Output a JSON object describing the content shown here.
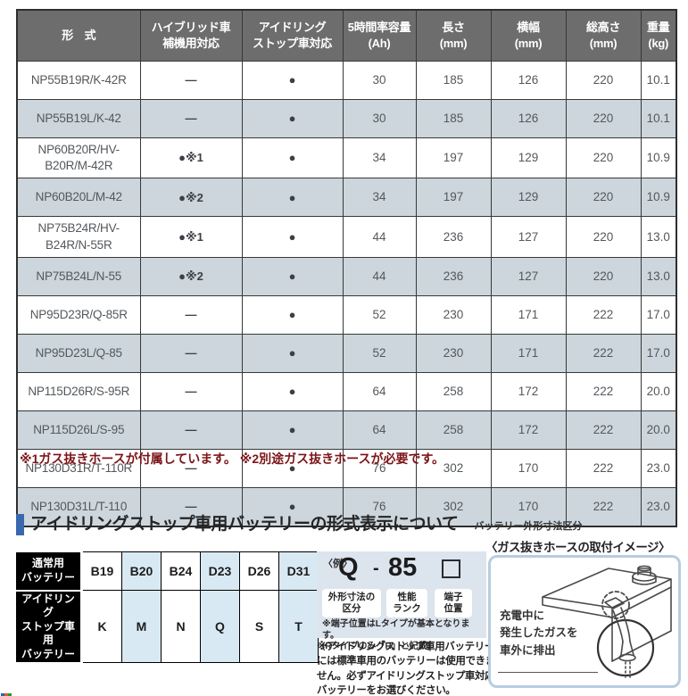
{
  "colors": {
    "header_bg": "#6d6d6d",
    "row_alt_bg": "#ccd6dc",
    "table_border": "#383838",
    "footnote_red": "#7c1417",
    "accent_blue": "#3a68ae",
    "map_alt_bg": "#d9e9f3",
    "example_bg": "#dce4ee",
    "hose_box_border": "#b7cde0"
  },
  "main_table": {
    "headers": [
      "形　式",
      "ハイブリッド車\n補機用対応",
      "アイドリング\nストップ車対応",
      "5時間率容量\n(Ah)",
      "長さ\n(mm)",
      "横幅\n(mm)",
      "総高さ\n(mm)",
      "重量\n(kg)"
    ],
    "rows": [
      [
        "NP55B19R/K-42R",
        "―",
        "●",
        "30",
        "185",
        "126",
        "220",
        "10.1"
      ],
      [
        "NP55B19L/K-42",
        "―",
        "●",
        "30",
        "185",
        "126",
        "220",
        "10.1"
      ],
      [
        "NP60B20R/HV-B20R/M-42R",
        "●※1",
        "●",
        "34",
        "197",
        "129",
        "220",
        "10.9"
      ],
      [
        "NP60B20L/M-42",
        "●※2",
        "●",
        "34",
        "197",
        "129",
        "220",
        "10.9"
      ],
      [
        "NP75B24R/HV-B24R/N-55R",
        "●※1",
        "●",
        "44",
        "236",
        "127",
        "220",
        "13.0"
      ],
      [
        "NP75B24L/N-55",
        "●※2",
        "●",
        "44",
        "236",
        "127",
        "220",
        "13.0"
      ],
      [
        "NP95D23R/Q-85R",
        "―",
        "●",
        "52",
        "230",
        "171",
        "222",
        "17.0"
      ],
      [
        "NP95D23L/Q-85",
        "―",
        "●",
        "52",
        "230",
        "171",
        "222",
        "17.0"
      ],
      [
        "NP115D26R/S-95R",
        "―",
        "●",
        "64",
        "258",
        "172",
        "222",
        "20.0"
      ],
      [
        "NP115D26L/S-95",
        "―",
        "●",
        "64",
        "258",
        "172",
        "222",
        "20.0"
      ],
      [
        "NP130D31R/T-110R",
        "―",
        "●",
        "76",
        "302",
        "170",
        "222",
        "23.0"
      ],
      [
        "NP130D31L/T-110",
        "―",
        "●",
        "76",
        "302",
        "170",
        "222",
        "23.0"
      ]
    ]
  },
  "footnote": "※1ガス抜きホースが付属しています。 ※2別途ガス抜きホースが必要です。",
  "section": {
    "title": "アイドリングストップ車用バッテリーの形式表示について",
    "subtitle": "バッテリー外形寸法区分"
  },
  "mapping_table": {
    "row_labels": [
      "通常用\nバッテリー",
      "アイドリング\nストップ車用\nバッテリー"
    ],
    "normal_codes": [
      "B19",
      "B20",
      "B24",
      "D23",
      "D26",
      "D31"
    ],
    "idling_codes": [
      "K",
      "M",
      "N",
      "Q",
      "S",
      "T"
    ]
  },
  "example": {
    "prefix": "〈例〉",
    "code_class": "Q",
    "separator": "-",
    "code_rank": "85",
    "labels": [
      "外形寸法の\n区分",
      "性能\nランク",
      "端子\n位置"
    ],
    "note": "※端子位置はLタイプが基本となります。\n(Rタイプのみ「R」と記載)"
  },
  "warning": "※アイドリングストップ車用バッテリーには標準車用のバッテリーは使用できません。必ずアイドリングストップ車対応バッテリーをお選びください。",
  "hose": {
    "title": "〈ガス抜きホースの取付イメージ〉",
    "caption": "充電中に\n発生したガスを\n車外に排出"
  }
}
